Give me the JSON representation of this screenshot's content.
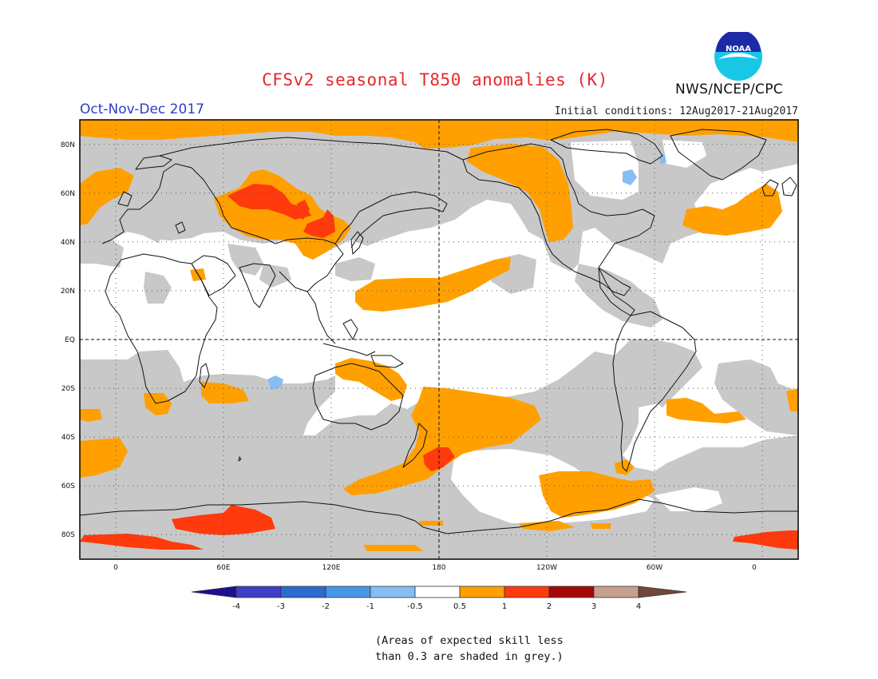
{
  "header": {
    "title": "CFSv2 seasonal T850 anomalies (K)",
    "agency": "NWS/NCEP/CPC",
    "logo_text": "NOAA",
    "period": "Oct-Nov-Dec 2017",
    "initial_conditions": "Initial conditions: 12Aug2017-21Aug2017"
  },
  "map": {
    "projection": "cylindrical equidistant",
    "lon_range": [
      -20,
      380
    ],
    "lat_range": [
      -90,
      90
    ],
    "lat_labels": [
      "80N",
      "60N",
      "40N",
      "20N",
      "EQ",
      "20S",
      "40S",
      "60S",
      "80S"
    ],
    "lon_labels": [
      "0",
      "60E",
      "120E",
      "180",
      "120W",
      "60W",
      "0"
    ],
    "dashed_lines": [
      "EQ",
      "180"
    ],
    "grid": "dotted, every 20° lat / 60° lon"
  },
  "legend": {
    "tick_labels": [
      "-4",
      "-3",
      "-2",
      "-1",
      "-0.5",
      "0.5",
      "1",
      "2",
      "3",
      "4"
    ],
    "colors": [
      "#1c0f8f",
      "#3f3ec8",
      "#2c6ad0",
      "#4697e6",
      "#86bdf3",
      "#ffffff",
      "#ffa000",
      "#ff3a0c",
      "#a50808",
      "#c8a090",
      "#704838"
    ]
  },
  "colors": {
    "grey_low_skill": "#c8c8c8",
    "anom_0p5_1": "#ffa000",
    "anom_1_2": "#ff3a0c",
    "anom_neg_0p5_1": "#86bdf3",
    "title": "#e8282a",
    "period": "#2a3ec8"
  },
  "footnote": {
    "line1": "(Areas of expected skill less",
    "line2": "than 0.3 are shaded in grey.)"
  }
}
